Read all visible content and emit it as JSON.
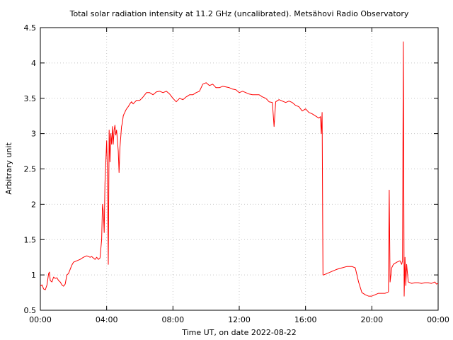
{
  "chart_data": {
    "type": "line",
    "title": "Total solar radiation intensity at 11.2 GHz (uncalibrated). Metsähovi Radio Observatory",
    "xlabel": "Time UT, on date 2022-08-22",
    "ylabel": "Arbitrary unit",
    "xlim": [
      0,
      24
    ],
    "ylim": [
      0.5,
      4.5
    ],
    "x_ticks": [
      {
        "value": 0,
        "label": "00:00"
      },
      {
        "value": 4,
        "label": "04:00"
      },
      {
        "value": 8,
        "label": "08:00"
      },
      {
        "value": 12,
        "label": "12:00"
      },
      {
        "value": 16,
        "label": "16:00"
      },
      {
        "value": 20,
        "label": "20:00"
      },
      {
        "value": 24,
        "label": "00:00"
      }
    ],
    "y_ticks": [
      {
        "value": 0.5,
        "label": "0.5"
      },
      {
        "value": 1,
        "label": "1"
      },
      {
        "value": 1.5,
        "label": "1.5"
      },
      {
        "value": 2,
        "label": "2"
      },
      {
        "value": 2.5,
        "label": "2.5"
      },
      {
        "value": 3,
        "label": "3"
      },
      {
        "value": 3.5,
        "label": "3.5"
      },
      {
        "value": 4,
        "label": "4"
      },
      {
        "value": 4.5,
        "label": "4.5"
      }
    ],
    "grid": true,
    "legend": "none",
    "series": [
      {
        "color": "#ff0000",
        "x": [
          0,
          0.1,
          0.2,
          0.3,
          0.4,
          0.5,
          0.55,
          0.6,
          0.7,
          0.8,
          0.9,
          1.0,
          1.1,
          1.2,
          1.3,
          1.4,
          1.5,
          1.6,
          1.7,
          1.8,
          1.9,
          2.0,
          2.2,
          2.4,
          2.6,
          2.8,
          3.0,
          3.1,
          3.2,
          3.3,
          3.4,
          3.5,
          3.6,
          3.7,
          3.75,
          3.8,
          3.85,
          3.9,
          3.95,
          4.0,
          4.05,
          4.1,
          4.15,
          4.2,
          4.25,
          4.3,
          4.35,
          4.4,
          4.45,
          4.5,
          4.55,
          4.6,
          4.65,
          4.7,
          4.75,
          4.8,
          4.85,
          4.9,
          4.95,
          5.0,
          5.05,
          5.1,
          5.15,
          5.2,
          5.3,
          5.4,
          5.5,
          5.6,
          5.8,
          6.0,
          6.2,
          6.4,
          6.6,
          6.8,
          7.0,
          7.2,
          7.4,
          7.6,
          7.8,
          8.0,
          8.2,
          8.4,
          8.6,
          8.8,
          9.0,
          9.2,
          9.4,
          9.6,
          9.8,
          10.0,
          10.2,
          10.4,
          10.6,
          10.8,
          11.0,
          11.2,
          11.4,
          11.6,
          11.8,
          12.0,
          12.2,
          12.4,
          12.6,
          12.8,
          13.0,
          13.2,
          13.4,
          13.6,
          13.8,
          14.0,
          14.1,
          14.2,
          14.4,
          14.6,
          14.8,
          15.0,
          15.2,
          15.4,
          15.6,
          15.8,
          16.0,
          16.2,
          16.4,
          16.6,
          16.8,
          16.9,
          16.95,
          17.0,
          17.05,
          17.1,
          17.3,
          17.6,
          17.9,
          18.2,
          18.5,
          18.8,
          19.0,
          19.2,
          19.4,
          19.6,
          19.8,
          20.0,
          20.2,
          20.4,
          20.6,
          20.8,
          21.0,
          21.05,
          21.1,
          21.15,
          21.2,
          21.3,
          21.5,
          21.7,
          21.8,
          21.85,
          21.9,
          21.95,
          22.0,
          22.05,
          22.1,
          22.2,
          22.4,
          22.6,
          22.8,
          23.0,
          23.2,
          23.4,
          23.6,
          23.8,
          23.9,
          24.0
        ],
        "y": [
          0.84,
          0.86,
          0.8,
          0.79,
          0.86,
          1.02,
          1.04,
          0.92,
          0.9,
          0.97,
          0.95,
          0.96,
          0.92,
          0.9,
          0.86,
          0.84,
          0.87,
          1.0,
          1.02,
          1.08,
          1.14,
          1.18,
          1.2,
          1.22,
          1.25,
          1.27,
          1.25,
          1.26,
          1.24,
          1.22,
          1.25,
          1.22,
          1.24,
          1.5,
          2.0,
          1.9,
          1.6,
          2.3,
          2.6,
          2.9,
          2.45,
          1.15,
          3.05,
          2.6,
          3.0,
          2.85,
          3.1,
          2.85,
          3.05,
          3.12,
          2.98,
          3.05,
          2.9,
          2.75,
          2.45,
          2.8,
          2.95,
          3.1,
          3.15,
          3.25,
          3.28,
          3.3,
          3.33,
          3.35,
          3.38,
          3.42,
          3.45,
          3.42,
          3.47,
          3.47,
          3.52,
          3.58,
          3.58,
          3.55,
          3.59,
          3.6,
          3.58,
          3.6,
          3.56,
          3.5,
          3.45,
          3.5,
          3.48,
          3.52,
          3.55,
          3.55,
          3.58,
          3.6,
          3.7,
          3.72,
          3.68,
          3.7,
          3.65,
          3.65,
          3.67,
          3.66,
          3.65,
          3.63,
          3.62,
          3.58,
          3.6,
          3.58,
          3.56,
          3.55,
          3.55,
          3.55,
          3.52,
          3.5,
          3.45,
          3.44,
          3.1,
          3.45,
          3.48,
          3.46,
          3.44,
          3.46,
          3.44,
          3.4,
          3.38,
          3.32,
          3.35,
          3.3,
          3.28,
          3.25,
          3.22,
          3.24,
          3.0,
          3.3,
          1.0,
          1.0,
          1.02,
          1.05,
          1.08,
          1.1,
          1.12,
          1.12,
          1.1,
          0.9,
          0.75,
          0.72,
          0.7,
          0.7,
          0.72,
          0.74,
          0.74,
          0.74,
          0.76,
          2.2,
          0.9,
          1.0,
          1.1,
          1.15,
          1.18,
          1.2,
          1.15,
          1.2,
          4.3,
          0.7,
          1.25,
          0.85,
          1.15,
          0.9,
          0.88,
          0.89,
          0.89,
          0.88,
          0.89,
          0.89,
          0.88,
          0.9,
          0.87,
          0.88
        ]
      }
    ]
  }
}
